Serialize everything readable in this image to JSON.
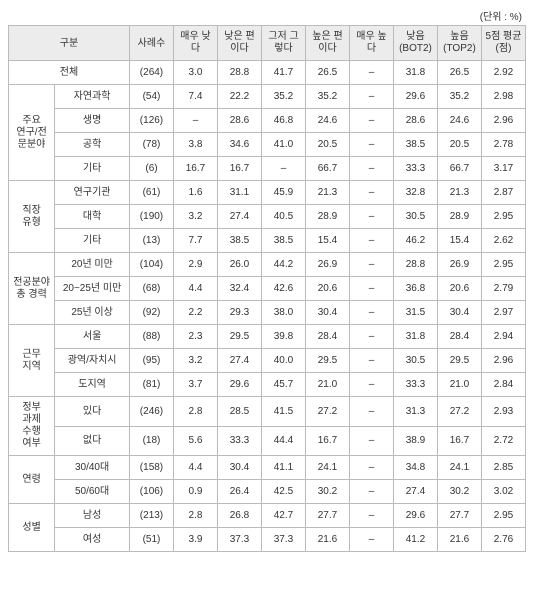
{
  "unit_label": "(단위 : %)",
  "headers": {
    "gubun": "구분",
    "c0": "사례수",
    "c1": "매우\n낮다",
    "c2": "낮은\n편이다",
    "c3": "그저\n그렇다",
    "c4": "높은\n편이다",
    "c5": "매우\n높다",
    "c6": "낮음\n(BOT2)",
    "c7": "높음\n(TOP2)",
    "c8": "5점\n평균(점)"
  },
  "groups": [
    {
      "label": "전체",
      "span": true,
      "rows": [
        {
          "sub": "",
          "v": [
            "(264)",
            "3.0",
            "28.8",
            "41.7",
            "26.5",
            "–",
            "31.8",
            "26.5",
            "2.92"
          ]
        }
      ]
    },
    {
      "label": "주요\n연구/전\n문분야",
      "rows": [
        {
          "sub": "자연과학",
          "v": [
            "(54)",
            "7.4",
            "22.2",
            "35.2",
            "35.2",
            "–",
            "29.6",
            "35.2",
            "2.98"
          ]
        },
        {
          "sub": "생명",
          "v": [
            "(126)",
            "–",
            "28.6",
            "46.8",
            "24.6",
            "–",
            "28.6",
            "24.6",
            "2.96"
          ]
        },
        {
          "sub": "공학",
          "v": [
            "(78)",
            "3.8",
            "34.6",
            "41.0",
            "20.5",
            "–",
            "38.5",
            "20.5",
            "2.78"
          ]
        },
        {
          "sub": "기타",
          "v": [
            "(6)",
            "16.7",
            "16.7",
            "–",
            "66.7",
            "–",
            "33.3",
            "66.7",
            "3.17"
          ]
        }
      ]
    },
    {
      "label": "직장\n유형",
      "rows": [
        {
          "sub": "연구기관",
          "v": [
            "(61)",
            "1.6",
            "31.1",
            "45.9",
            "21.3",
            "–",
            "32.8",
            "21.3",
            "2.87"
          ]
        },
        {
          "sub": "대학",
          "v": [
            "(190)",
            "3.2",
            "27.4",
            "40.5",
            "28.9",
            "–",
            "30.5",
            "28.9",
            "2.95"
          ]
        },
        {
          "sub": "기타",
          "v": [
            "(13)",
            "7.7",
            "38.5",
            "38.5",
            "15.4",
            "–",
            "46.2",
            "15.4",
            "2.62"
          ]
        }
      ]
    },
    {
      "label": "전공분야\n총 경력",
      "rows": [
        {
          "sub": "20년 미만",
          "v": [
            "(104)",
            "2.9",
            "26.0",
            "44.2",
            "26.9",
            "–",
            "28.8",
            "26.9",
            "2.95"
          ]
        },
        {
          "sub": "20~25년 미만",
          "v": [
            "(68)",
            "4.4",
            "32.4",
            "42.6",
            "20.6",
            "–",
            "36.8",
            "20.6",
            "2.79"
          ]
        },
        {
          "sub": "25년 이상",
          "v": [
            "(92)",
            "2.2",
            "29.3",
            "38.0",
            "30.4",
            "–",
            "31.5",
            "30.4",
            "2.97"
          ]
        }
      ]
    },
    {
      "label": "근무\n지역",
      "rows": [
        {
          "sub": "서울",
          "v": [
            "(88)",
            "2.3",
            "29.5",
            "39.8",
            "28.4",
            "–",
            "31.8",
            "28.4",
            "2.94"
          ]
        },
        {
          "sub": "광역/자치시",
          "v": [
            "(95)",
            "3.2",
            "27.4",
            "40.0",
            "29.5",
            "–",
            "30.5",
            "29.5",
            "2.96"
          ]
        },
        {
          "sub": "도지역",
          "v": [
            "(81)",
            "3.7",
            "29.6",
            "45.7",
            "21.0",
            "–",
            "33.3",
            "21.0",
            "2.84"
          ]
        }
      ]
    },
    {
      "label": "정부\n과제\n수행\n여부",
      "rows": [
        {
          "sub": "있다",
          "v": [
            "(246)",
            "2.8",
            "28.5",
            "41.5",
            "27.2",
            "–",
            "31.3",
            "27.2",
            "2.93"
          ]
        },
        {
          "sub": "없다",
          "v": [
            "(18)",
            "5.6",
            "33.3",
            "44.4",
            "16.7",
            "–",
            "38.9",
            "16.7",
            "2.72"
          ]
        }
      ]
    },
    {
      "label": "연령",
      "rows": [
        {
          "sub": "30/40대",
          "v": [
            "(158)",
            "4.4",
            "30.4",
            "41.1",
            "24.1",
            "–",
            "34.8",
            "24.1",
            "2.85"
          ]
        },
        {
          "sub": "50/60대",
          "v": [
            "(106)",
            "0.9",
            "26.4",
            "42.5",
            "30.2",
            "–",
            "27.4",
            "30.2",
            "3.02"
          ]
        }
      ]
    },
    {
      "label": "성별",
      "rows": [
        {
          "sub": "남성",
          "v": [
            "(213)",
            "2.8",
            "26.8",
            "42.7",
            "27.7",
            "–",
            "29.6",
            "27.7",
            "2.95"
          ]
        },
        {
          "sub": "여성",
          "v": [
            "(51)",
            "3.9",
            "37.3",
            "37.3",
            "21.6",
            "–",
            "41.2",
            "21.6",
            "2.76"
          ]
        }
      ]
    }
  ]
}
